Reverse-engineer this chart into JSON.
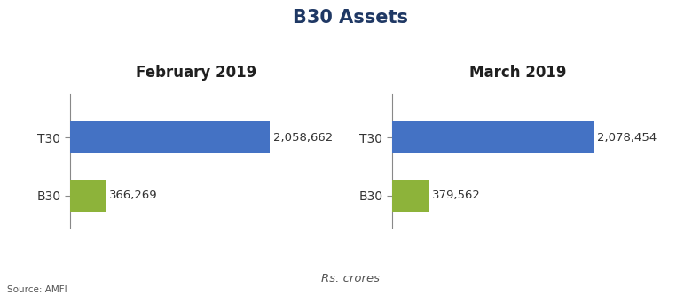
{
  "title": "B30 Assets",
  "title_fontsize": 15,
  "title_fontweight": "bold",
  "title_color": "#1f3864",
  "background_color": "#ffffff",
  "left_panel_title": "February 2019",
  "right_panel_title": "March 2019",
  "panel_title_fontsize": 12,
  "panel_title_fontweight": "bold",
  "panel_title_color": "#1f1f1f",
  "categories": [
    "T30",
    "B30"
  ],
  "feb_values": [
    2058662,
    366269
  ],
  "mar_values": [
    2078454,
    379562
  ],
  "feb_labels": [
    "2,058,662",
    "366,269"
  ],
  "mar_labels": [
    "2,078,454",
    "379,562"
  ],
  "bar_colors": [
    "#4472c4",
    "#8db33a"
  ],
  "bar_height": 0.55,
  "xlim": [
    0,
    2600000
  ],
  "label_fontsize": 9.5,
  "label_color": "#333333",
  "category_fontsize": 10,
  "category_color": "#333333",
  "footnote": "Rs. crores",
  "source": "Source: AMFI",
  "source_fontsize": 7.5,
  "footnote_fontsize": 9.5
}
